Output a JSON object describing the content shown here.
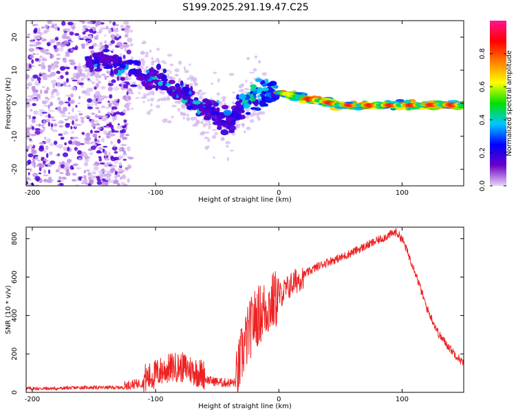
{
  "title": "S199.2025.291.19.47.C25",
  "chart_data": [
    {
      "type": "heatmap",
      "title": "S199.2025.291.19.47.C25",
      "xlabel": "Height of straight line (km)",
      "ylabel": "Frequency (Hz)",
      "xlim": [
        -205,
        150
      ],
      "ylim": [
        -25,
        25
      ],
      "xticks": [
        -200,
        -100,
        0,
        100
      ],
      "yticks": [
        -20,
        -10,
        0,
        10,
        20
      ],
      "colorbar": {
        "label": "Normalized spectral amplitude",
        "range": [
          0,
          1
        ],
        "ticks": [
          "0.0",
          "0.2",
          "0.4",
          "0.6",
          "0.8"
        ],
        "tick_values": [
          0.0,
          0.2,
          0.4,
          0.6,
          0.8
        ],
        "colors": [
          "#e6d4f5",
          "#6a00c8",
          "#0000ff",
          "#00c8ff",
          "#00e000",
          "#ffff00",
          "#ff7f00",
          "#ff0000",
          "#ff1493"
        ]
      },
      "ridge": {
        "x": [
          -150,
          -135,
          -120,
          -105,
          -95,
          -85,
          -75,
          -65,
          -55,
          -48,
          -42,
          -38,
          -33,
          -28,
          -20,
          -10,
          0,
          10,
          20,
          30,
          40,
          50,
          60,
          80,
          100,
          120,
          150
        ],
        "y": [
          13,
          12,
          10,
          8,
          6.5,
          4.5,
          2.5,
          -1,
          -2,
          -4.5,
          -6,
          -5,
          -2,
          0,
          2.5,
          3,
          3.3,
          2.5,
          1.5,
          1,
          0.2,
          -0.5,
          -0.6,
          -0.6,
          -0.6,
          -0.5,
          -0.4
        ]
      }
    },
    {
      "type": "line",
      "xlabel": "Height of straight line (km)",
      "ylabel": "SNR (10 * v/v)",
      "xlim": [
        -205,
        150
      ],
      "ylim": [
        0,
        860
      ],
      "xticks": [
        -200,
        -100,
        0,
        100
      ],
      "yticks": [
        0,
        200,
        400,
        600,
        800
      ],
      "color": "#ee2222",
      "series": [
        {
          "name": "SNR",
          "x": [
            -205,
            -180,
            -160,
            -140,
            -125,
            -115,
            -105,
            -95,
            -85,
            -75,
            -65,
            -55,
            -45,
            -35,
            -30,
            -25,
            -20,
            -10,
            0,
            10,
            20,
            30,
            40,
            50,
            60,
            70,
            80,
            90,
            95,
            100,
            110,
            120,
            130,
            140,
            150
          ],
          "y": [
            20,
            20,
            25,
            25,
            25,
            35,
            45,
            80,
            100,
            95,
            70,
            50,
            40,
            40,
            200,
            300,
            380,
            440,
            500,
            560,
            610,
            650,
            680,
            700,
            730,
            760,
            790,
            820,
            835,
            800,
            640,
            440,
            300,
            220,
            150
          ]
        }
      ]
    }
  ]
}
